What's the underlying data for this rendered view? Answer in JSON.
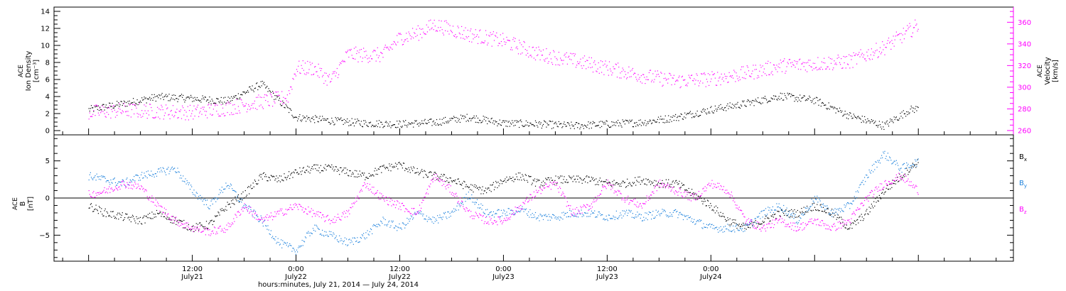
{
  "colors": {
    "density": "#000000",
    "velocity": "#ff00ff",
    "bx": "#000000",
    "by": "#1e82dc",
    "bz": "#ff00ff"
  },
  "chart_data": [
    {
      "type": "scatter",
      "panel": "top",
      "ylabel_left": [
        "ACE",
        "Ion Density",
        "[cm⁻³]"
      ],
      "ylabel_right": [
        "ACE",
        "Velocity",
        "[km/s]"
      ],
      "yleft_ticks": [
        0,
        2,
        4,
        6,
        8,
        10,
        12,
        14
      ],
      "yleft_range": [
        -0.5,
        14.5
      ],
      "yright_ticks": [
        260,
        280,
        300,
        320,
        340,
        360
      ],
      "yright_range": [
        256,
        374
      ],
      "grid": false,
      "series": [
        {
          "key": "density",
          "axis": "left",
          "x_hours": [
            0,
            4,
            8,
            12,
            16,
            20,
            24,
            26,
            28,
            32,
            36,
            40,
            44,
            48,
            52,
            56,
            60,
            64,
            68,
            72,
            76,
            80,
            84,
            88,
            92,
            95,
            96
          ],
          "values": [
            2.5,
            3.2,
            4.0,
            3.8,
            3.5,
            5.5,
            1.6,
            1.4,
            1.2,
            0.9,
            0.8,
            1.0,
            1.6,
            0.9,
            0.8,
            0.6,
            0.8,
            1.0,
            1.6,
            2.5,
            3.2,
            4.1,
            3.6,
            1.8,
            0.6,
            2.5,
            2.6
          ]
        },
        {
          "key": "velocity",
          "axis": "right",
          "x_hours": [
            0,
            4,
            8,
            12,
            16,
            20,
            23,
            24,
            26,
            28,
            30,
            32,
            34,
            36,
            38,
            40,
            44,
            48,
            52,
            56,
            60,
            64,
            68,
            72,
            76,
            80,
            84,
            88,
            92,
            96
          ],
          "values": [
            277,
            279,
            278,
            277,
            281,
            287,
            291,
            318,
            318,
            306,
            331,
            330,
            330,
            346,
            350,
            358,
            349,
            343,
            331,
            325,
            318,
            311,
            306,
            308,
            313,
            320,
            322,
            324,
            337,
            358
          ]
        }
      ]
    },
    {
      "type": "scatter",
      "panel": "bottom",
      "ylabel": [
        "ACE",
        "B",
        "[nT]"
      ],
      "y_ticks": [
        -5,
        0,
        5
      ],
      "y_range": [
        -8.5,
        8.5
      ],
      "zero_line": true,
      "grid": false,
      "legend": [
        {
          "key": "bx",
          "label": "B",
          "sub": "x"
        },
        {
          "key": "by",
          "label": "B",
          "sub": "y"
        },
        {
          "key": "bz",
          "label": "B",
          "sub": "z"
        }
      ],
      "series": [
        {
          "key": "bx",
          "x_hours": [
            0,
            2,
            4,
            6,
            8,
            10,
            12,
            14,
            16,
            18,
            20,
            22,
            24,
            26,
            28,
            30,
            32,
            34,
            36,
            38,
            40,
            42,
            44,
            46,
            48,
            50,
            52,
            54,
            56,
            58,
            60,
            62,
            64,
            66,
            68,
            70,
            72,
            74,
            76,
            78,
            80,
            82,
            84,
            86,
            88,
            90,
            92,
            94,
            96
          ],
          "values": [
            -1,
            -2,
            -2.5,
            -3,
            -2,
            -3,
            -4,
            -3.5,
            -1,
            0.5,
            3,
            2.5,
            3.5,
            4,
            4,
            3.5,
            3,
            4,
            4.5,
            3.5,
            3,
            2.5,
            1.5,
            1,
            2.5,
            3,
            2,
            2.5,
            2.5,
            2.5,
            2,
            2,
            2.5,
            2,
            2,
            0.5,
            -1,
            -3,
            -4,
            -3,
            -2,
            -2,
            -1,
            -2,
            -4,
            -2,
            1,
            3,
            5
          ]
        },
        {
          "key": "by",
          "x_hours": [
            0,
            2,
            4,
            6,
            8,
            10,
            12,
            14,
            16,
            18,
            20,
            22,
            24,
            26,
            28,
            30,
            32,
            34,
            36,
            38,
            40,
            42,
            44,
            46,
            48,
            50,
            52,
            54,
            56,
            58,
            60,
            62,
            64,
            66,
            68,
            70,
            72,
            74,
            76,
            78,
            80,
            82,
            84,
            86,
            88,
            90,
            92,
            94,
            96
          ],
          "values": [
            3,
            2.5,
            2,
            3,
            3.5,
            4,
            1,
            -1,
            2,
            -1,
            -3,
            -6,
            -7,
            -4,
            -5,
            -6,
            -5,
            -3,
            -4,
            -2,
            -3,
            -2,
            0.5,
            -2,
            -2,
            -1.5,
            -2.5,
            -2.5,
            -2,
            -2,
            -2.5,
            -2,
            -2.5,
            -2,
            -2,
            -3,
            -4,
            -4,
            -4,
            -2,
            -1,
            -3,
            0,
            -2,
            -1,
            3,
            6,
            4,
            5
          ]
        },
        {
          "key": "bz",
          "x_hours": [
            0,
            2,
            4,
            6,
            8,
            10,
            12,
            14,
            16,
            18,
            20,
            22,
            24,
            26,
            28,
            30,
            32,
            34,
            36,
            38,
            40,
            42,
            44,
            46,
            48,
            50,
            52,
            54,
            56,
            58,
            60,
            62,
            64,
            66,
            68,
            70,
            72,
            74,
            76,
            78,
            80,
            82,
            84,
            86,
            88,
            90,
            92,
            94,
            96
          ],
          "values": [
            0.5,
            1,
            2,
            1.5,
            -1,
            -3,
            -4,
            -4.5,
            -4,
            -1,
            -3,
            -2,
            -1,
            -2,
            -3,
            -2,
            2,
            0,
            -1,
            -2,
            3,
            1,
            -2,
            -3,
            -3,
            -1,
            1,
            2,
            -2,
            -1,
            2,
            0,
            -1,
            2,
            1,
            0,
            2,
            1,
            -3,
            -4,
            -3,
            -4,
            -3,
            -4,
            -3,
            0,
            2,
            3,
            1
          ]
        }
      ]
    }
  ],
  "x_axis": {
    "title": "hours:minutes, July 21, 2014 — July 24, 2014",
    "range_hours": [
      -4,
      107
    ],
    "major_ticks": [
      {
        "hour": 12,
        "time": "12:00",
        "date": "July21"
      },
      {
        "hour": 24,
        "time": "0:00",
        "date": "July22"
      },
      {
        "hour": 36,
        "time": "12:00",
        "date": "July22"
      },
      {
        "hour": 48,
        "time": "0:00",
        "date": "July23"
      },
      {
        "hour": 60,
        "time": "12:00",
        "date": "July23"
      },
      {
        "hour": 72,
        "time": "0:00",
        "date": "July24"
      }
    ]
  }
}
